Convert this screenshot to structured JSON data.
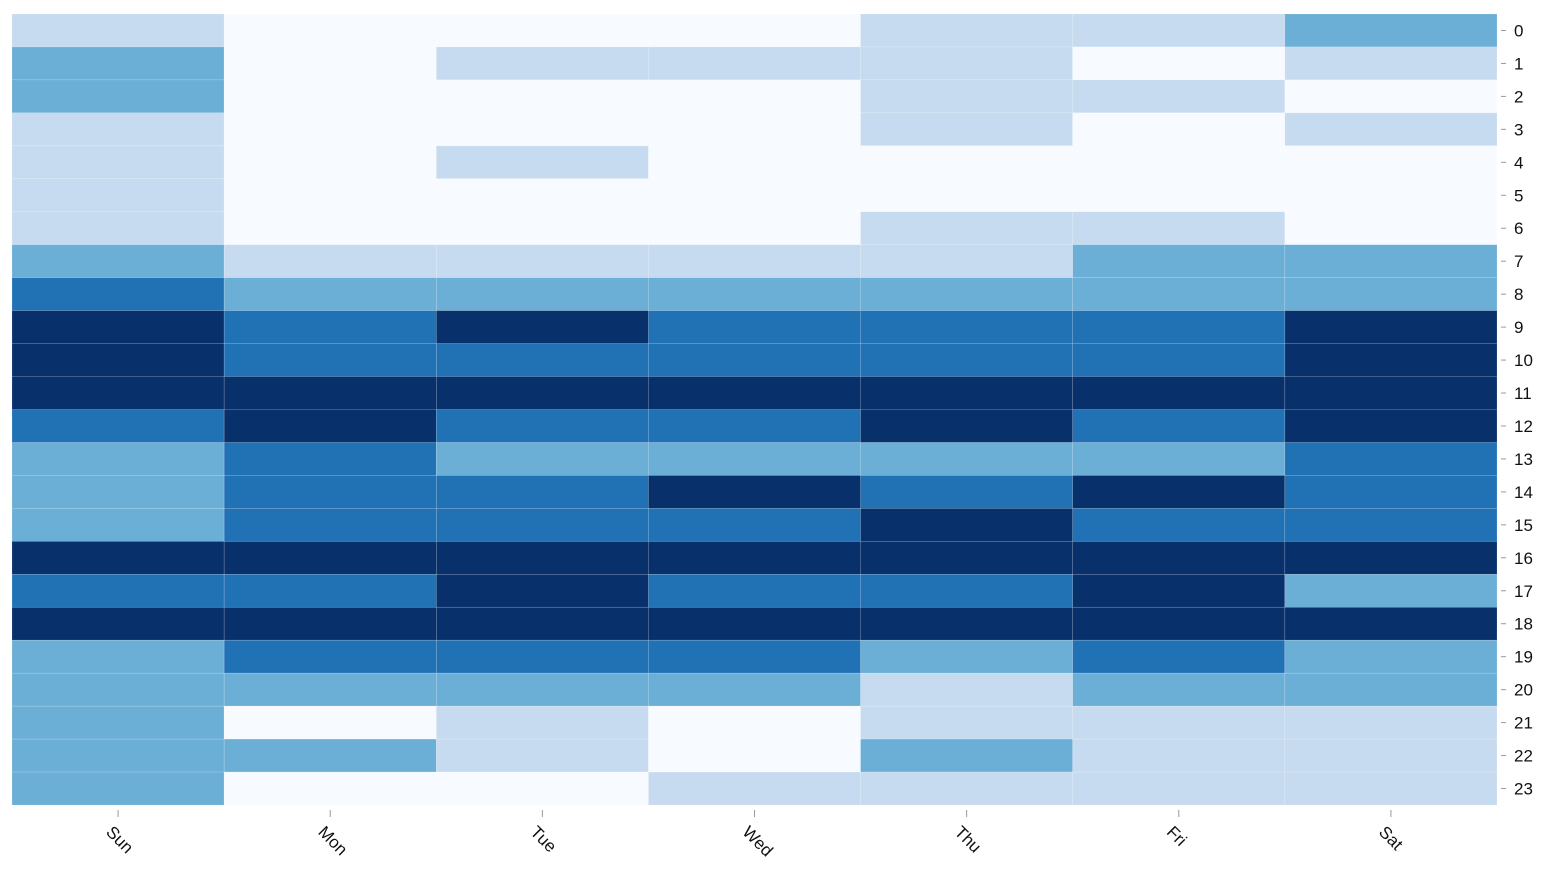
{
  "chart_data": {
    "type": "heatmap",
    "title": "",
    "xlabel": "",
    "ylabel": "",
    "x_categories": [
      "Sun",
      "Mon",
      "Tue",
      "Wed",
      "Thu",
      "Fri",
      "Sat"
    ],
    "y_categories": [
      "0",
      "1",
      "2",
      "3",
      "4",
      "5",
      "6",
      "7",
      "8",
      "9",
      "10",
      "11",
      "12",
      "13",
      "14",
      "15",
      "16",
      "17",
      "18",
      "19",
      "20",
      "21",
      "22",
      "23"
    ],
    "levels": [
      0,
      1,
      2,
      3,
      4
    ],
    "colors": [
      "#f7fbff",
      "#c6dbef",
      "#6baed6",
      "#2171b5",
      "#08306b"
    ],
    "values": [
      [
        1,
        0,
        0,
        0,
        1,
        1,
        2
      ],
      [
        2,
        0,
        1,
        1,
        1,
        0,
        1
      ],
      [
        2,
        0,
        0,
        0,
        1,
        1,
        0
      ],
      [
        1,
        0,
        0,
        0,
        1,
        0,
        1
      ],
      [
        1,
        0,
        1,
        0,
        0,
        0,
        0
      ],
      [
        1,
        0,
        0,
        0,
        0,
        0,
        0
      ],
      [
        1,
        0,
        0,
        0,
        1,
        1,
        0
      ],
      [
        2,
        1,
        1,
        1,
        1,
        2,
        2
      ],
      [
        3,
        2,
        2,
        2,
        2,
        2,
        2
      ],
      [
        4,
        3,
        4,
        3,
        3,
        3,
        4
      ],
      [
        4,
        3,
        3,
        3,
        3,
        3,
        4
      ],
      [
        4,
        4,
        4,
        4,
        4,
        4,
        4
      ],
      [
        3,
        4,
        3,
        3,
        4,
        3,
        4
      ],
      [
        2,
        3,
        2,
        2,
        2,
        2,
        3
      ],
      [
        2,
        3,
        3,
        4,
        3,
        4,
        3
      ],
      [
        2,
        3,
        3,
        3,
        4,
        3,
        3
      ],
      [
        4,
        4,
        4,
        4,
        4,
        4,
        4
      ],
      [
        3,
        3,
        4,
        3,
        3,
        4,
        2
      ],
      [
        4,
        4,
        4,
        4,
        4,
        4,
        4
      ],
      [
        2,
        3,
        3,
        3,
        2,
        3,
        2
      ],
      [
        2,
        2,
        2,
        2,
        1,
        2,
        2
      ],
      [
        2,
        0,
        1,
        0,
        1,
        1,
        1
      ],
      [
        2,
        2,
        1,
        0,
        2,
        1,
        1
      ],
      [
        2,
        0,
        0,
        1,
        1,
        1,
        1
      ]
    ],
    "legend": "none",
    "y_axis_position": "right",
    "x_tick_rotation": "45-degrees"
  }
}
